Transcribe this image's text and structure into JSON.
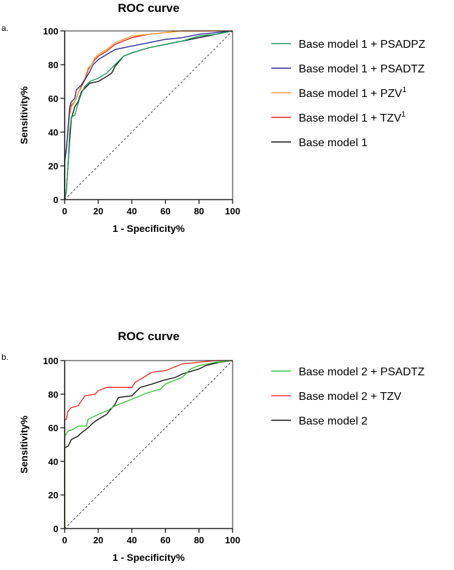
{
  "chart_data": [
    {
      "panel_label": "a.",
      "type": "line",
      "title": "ROC curve",
      "xlabel": "1 - Specificity%",
      "ylabel": "Sensitivity%",
      "xlim": [
        0,
        100
      ],
      "ylim": [
        0,
        100
      ],
      "ticks": [
        0,
        20,
        40,
        60,
        80,
        100
      ],
      "legend_position": "right",
      "series": [
        {
          "name": "Base model 1 + PSADPZ",
          "sup": "",
          "color": "#1e9a5e",
          "points": [
            [
              0,
              0
            ],
            [
              1,
              5
            ],
            [
              2,
              20
            ],
            [
              3,
              40
            ],
            [
              4,
              49
            ],
            [
              6,
              50
            ],
            [
              8,
              57
            ],
            [
              10,
              63
            ],
            [
              12,
              67
            ],
            [
              15,
              70
            ],
            [
              20,
              72
            ],
            [
              25,
              75
            ],
            [
              30,
              80
            ],
            [
              35,
              85
            ],
            [
              40,
              87
            ],
            [
              50,
              90
            ],
            [
              60,
              92
            ],
            [
              70,
              94
            ],
            [
              80,
              97
            ],
            [
              90,
              98
            ],
            [
              100,
              100
            ]
          ]
        },
        {
          "name": "Base model 1 + PSADTZ",
          "sup": "",
          "color": "#2c2c96",
          "points": [
            [
              0,
              0
            ],
            [
              0,
              22
            ],
            [
              1,
              30
            ],
            [
              2,
              42
            ],
            [
              3,
              55
            ],
            [
              4,
              58
            ],
            [
              6,
              60
            ],
            [
              7,
              65
            ],
            [
              10,
              68
            ],
            [
              12,
              71
            ],
            [
              15,
              76
            ],
            [
              17,
              80
            ],
            [
              20,
              83
            ],
            [
              25,
              86
            ],
            [
              30,
              89
            ],
            [
              40,
              91
            ],
            [
              50,
              93
            ],
            [
              60,
              95
            ],
            [
              70,
              96
            ],
            [
              80,
              98
            ],
            [
              90,
              99
            ],
            [
              100,
              100
            ]
          ]
        },
        {
          "name": "Base model 1 + PZV",
          "sup": "1",
          "color": "#f0a030",
          "points": [
            [
              0,
              0
            ],
            [
              0,
              24
            ],
            [
              1,
              30
            ],
            [
              2,
              40
            ],
            [
              3,
              50
            ],
            [
              4,
              55
            ],
            [
              6,
              58
            ],
            [
              8,
              63
            ],
            [
              10,
              68
            ],
            [
              12,
              72
            ],
            [
              14,
              78
            ],
            [
              16,
              80
            ],
            [
              18,
              84
            ],
            [
              20,
              86
            ],
            [
              25,
              89
            ],
            [
              30,
              93
            ],
            [
              35,
              95
            ],
            [
              40,
              97
            ],
            [
              50,
              98
            ],
            [
              60,
              99
            ],
            [
              70,
              100
            ],
            [
              100,
              100
            ]
          ]
        },
        {
          "name": "Base model 1 + TZV",
          "sup": "1",
          "color": "#e02020",
          "points": [
            [
              0,
              0
            ],
            [
              0,
              23
            ],
            [
              1,
              29
            ],
            [
              2,
              40
            ],
            [
              3,
              52
            ],
            [
              4,
              56
            ],
            [
              6,
              58
            ],
            [
              8,
              63
            ],
            [
              10,
              67
            ],
            [
              12,
              71
            ],
            [
              14,
              77
            ],
            [
              16,
              80
            ],
            [
              18,
              83
            ],
            [
              20,
              85
            ],
            [
              25,
              88
            ],
            [
              30,
              92
            ],
            [
              35,
              94
            ],
            [
              40,
              96
            ],
            [
              50,
              98
            ],
            [
              60,
              99
            ],
            [
              70,
              100
            ],
            [
              100,
              100
            ]
          ]
        },
        {
          "name": "Base model 1",
          "sup": "",
          "color": "#111111",
          "points": [
            [
              0,
              0
            ],
            [
              1,
              5
            ],
            [
              2,
              20
            ],
            [
              3,
              35
            ],
            [
              4,
              48
            ],
            [
              6,
              55
            ],
            [
              8,
              58
            ],
            [
              10,
              64
            ],
            [
              12,
              66
            ],
            [
              15,
              69
            ],
            [
              20,
              70
            ],
            [
              25,
              73
            ],
            [
              28,
              75
            ],
            [
              30,
              79
            ],
            [
              35,
              85
            ],
            [
              40,
              87
            ],
            [
              50,
              90
            ],
            [
              60,
              92
            ],
            [
              70,
              94
            ],
            [
              80,
              96
            ],
            [
              90,
              98
            ],
            [
              100,
              100
            ]
          ]
        }
      ]
    },
    {
      "panel_label": "b.",
      "type": "line",
      "title": "ROC curve",
      "xlabel": "1 - Specificity%",
      "ylabel": "Sensitivity%",
      "xlim": [
        0,
        100
      ],
      "ylim": [
        0,
        100
      ],
      "ticks": [
        0,
        20,
        40,
        60,
        80,
        100
      ],
      "legend_position": "right",
      "series": [
        {
          "name": "Base model 2 + PSADTZ",
          "sup": "",
          "color": "#3cc03c",
          "points": [
            [
              0,
              0
            ],
            [
              0,
              55
            ],
            [
              2,
              58
            ],
            [
              5,
              59
            ],
            [
              8,
              61
            ],
            [
              13,
              61
            ],
            [
              14,
              65
            ],
            [
              20,
              68
            ],
            [
              25,
              70
            ],
            [
              30,
              73
            ],
            [
              35,
              75
            ],
            [
              40,
              77
            ],
            [
              50,
              81
            ],
            [
              57,
              83
            ],
            [
              60,
              86
            ],
            [
              70,
              90
            ],
            [
              75,
              95
            ],
            [
              80,
              97
            ],
            [
              90,
              99
            ],
            [
              100,
              100
            ]
          ]
        },
        {
          "name": "Base model 2 + TZV",
          "sup": "",
          "color": "#f03030",
          "points": [
            [
              0,
              0
            ],
            [
              0,
              65
            ],
            [
              1,
              65
            ],
            [
              2,
              70
            ],
            [
              4,
              72
            ],
            [
              8,
              73
            ],
            [
              10,
              76
            ],
            [
              12,
              79
            ],
            [
              18,
              80
            ],
            [
              20,
              82
            ],
            [
              25,
              84
            ],
            [
              40,
              84
            ],
            [
              42,
              87
            ],
            [
              47,
              90
            ],
            [
              52,
              93
            ],
            [
              60,
              94
            ],
            [
              65,
              96
            ],
            [
              70,
              98
            ],
            [
              80,
              99
            ],
            [
              90,
              100
            ],
            [
              100,
              100
            ]
          ]
        },
        {
          "name": "Base model 2",
          "sup": "",
          "color": "#111111",
          "points": [
            [
              0,
              0
            ],
            [
              0,
              48
            ],
            [
              2,
              49
            ],
            [
              4,
              53
            ],
            [
              8,
              55
            ],
            [
              10,
              57
            ],
            [
              14,
              60
            ],
            [
              17,
              63
            ],
            [
              20,
              65
            ],
            [
              25,
              68
            ],
            [
              30,
              74
            ],
            [
              32,
              78
            ],
            [
              40,
              79
            ],
            [
              42,
              81
            ],
            [
              45,
              84
            ],
            [
              52,
              86
            ],
            [
              58,
              88
            ],
            [
              66,
              90
            ],
            [
              70,
              92
            ],
            [
              80,
              95
            ],
            [
              84,
              97
            ],
            [
              92,
              99
            ],
            [
              100,
              100
            ]
          ]
        }
      ]
    }
  ]
}
